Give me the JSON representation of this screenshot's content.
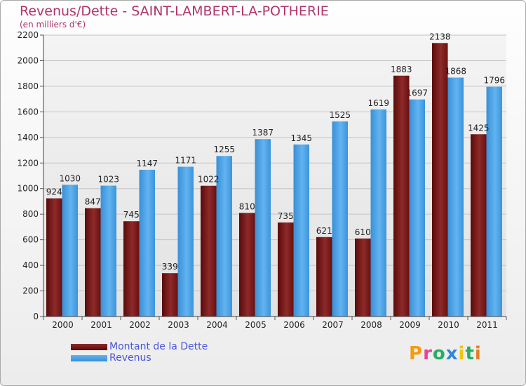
{
  "title": "Revenus/Dette - SAINT-LAMBERT-LA-POTHERIE",
  "subtitle": "(en milliers d'€)",
  "legend": [
    {
      "label": "Montant de la Dette",
      "color": "#7a1414"
    },
    {
      "label": "Revenus",
      "color": "#4aa3e6"
    }
  ],
  "logo": {
    "text": "Proxiti",
    "colors": [
      "#f39c12",
      "#e84393",
      "#27ae60",
      "#2e86de",
      "#f1c40f",
      "#27ae60",
      "#e67e22"
    ]
  },
  "chart_data": {
    "type": "bar",
    "categories": [
      "2000",
      "2001",
      "2002",
      "2003",
      "2004",
      "2005",
      "2006",
      "2007",
      "2008",
      "2009",
      "2010",
      "2011"
    ],
    "series": [
      {
        "name": "Montant de la Dette",
        "color": "#7a1414",
        "values": [
          924,
          847,
          745,
          339,
          1022,
          810,
          735,
          621,
          610,
          1883,
          2138,
          1425
        ]
      },
      {
        "name": "Revenus",
        "color": "#4aa3e6",
        "values": [
          1030,
          1023,
          1147,
          1171,
          1255,
          1387,
          1345,
          1525,
          1619,
          1697,
          1868,
          1796
        ]
      }
    ],
    "ylim": [
      0,
      2200
    ],
    "yticks": [
      0,
      200,
      400,
      600,
      800,
      1000,
      1200,
      1400,
      1600,
      1800,
      2000,
      2200
    ],
    "grid": true,
    "legend_position": "bottom-left"
  }
}
